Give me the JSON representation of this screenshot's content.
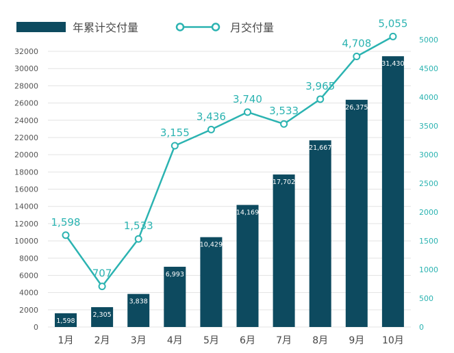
{
  "colors": {
    "bar": "#0d4a5f",
    "line": "#2bb3b1",
    "grid": "#e3e3e3",
    "background": "#ffffff"
  },
  "chart_data": {
    "type": "bar",
    "title": "",
    "xlabel": "",
    "ylabel": "",
    "categories": [
      "1月",
      "2月",
      "3月",
      "4月",
      "5月",
      "6月",
      "7月",
      "8月",
      "9月",
      "10月"
    ],
    "series": [
      {
        "name": "年累计交付量",
        "type": "bar",
        "axis": "left",
        "values": [
          1598,
          2305,
          3838,
          6993,
          10429,
          14169,
          17702,
          21667,
          26375,
          31430
        ],
        "labels": [
          "1,598",
          "2,305",
          "3,838",
          "6,993",
          "10,429",
          "14,169",
          "17,702",
          "21,667",
          "26,375",
          "31,430"
        ]
      },
      {
        "name": "月交付量",
        "type": "line",
        "axis": "right",
        "values": [
          1598,
          707,
          1533,
          3155,
          3436,
          3740,
          3533,
          3965,
          4708,
          5055
        ],
        "labels": [
          "1,598",
          "707",
          "1,533",
          "3,155",
          "3,436",
          "3,740",
          "3,533",
          "3,965",
          "4,708",
          "5,055"
        ]
      }
    ],
    "y_left": {
      "ylim": [
        0,
        32000
      ],
      "ticks": [
        0,
        2000,
        4000,
        6000,
        8000,
        10000,
        12000,
        14000,
        16000,
        18000,
        20000,
        22000,
        24000,
        26000,
        28000,
        30000,
        32000
      ]
    },
    "y_right": {
      "ylim": [
        0,
        5000
      ],
      "ticks": [
        0,
        500,
        1000,
        1500,
        2000,
        2500,
        3000,
        3500,
        4000,
        4500,
        5000
      ]
    },
    "grid": true,
    "legend": "top-left"
  }
}
